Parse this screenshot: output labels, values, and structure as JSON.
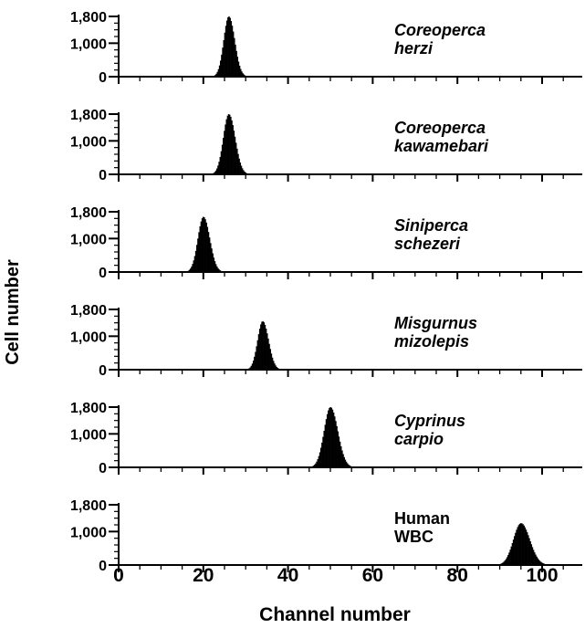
{
  "chart_data": {
    "type": "bar",
    "xlabel": "Channel number",
    "ylabel": "Cell number",
    "xlim": [
      0,
      110
    ],
    "ylim": [
      0,
      1800
    ],
    "x_ticks": [
      0,
      20,
      40,
      60,
      80,
      100
    ],
    "y_ticks": [
      0,
      1000,
      1800
    ],
    "y_tick_labels": [
      "0",
      "1,000",
      "1,800"
    ],
    "color": "#000000",
    "panels": [
      {
        "species_line1": "Coreoperca",
        "species_line2": "herzi",
        "italic": true,
        "peak_channel": 26,
        "peak_count": 1800,
        "spread": 1.2
      },
      {
        "species_line1": "Coreoperca",
        "species_line2": "kawamebari",
        "italic": true,
        "peak_channel": 26,
        "peak_count": 1800,
        "spread": 1.3
      },
      {
        "species_line1": "Siniperca",
        "species_line2": "schezeri",
        "italic": true,
        "peak_channel": 20,
        "peak_count": 1650,
        "spread": 1.3
      },
      {
        "species_line1": "Misgurnus",
        "species_line2": "mizolepis",
        "italic": true,
        "peak_channel": 34,
        "peak_count": 1450,
        "spread": 1.2
      },
      {
        "species_line1": "Cyprinus",
        "species_line2": "carpio",
        "italic": true,
        "peak_channel": 50,
        "peak_count": 1800,
        "spread": 1.5
      },
      {
        "species_line1": "Human",
        "species_line2": "WBC",
        "italic": false,
        "peak_channel": 95,
        "peak_count": 1250,
        "spread": 1.8
      }
    ]
  }
}
